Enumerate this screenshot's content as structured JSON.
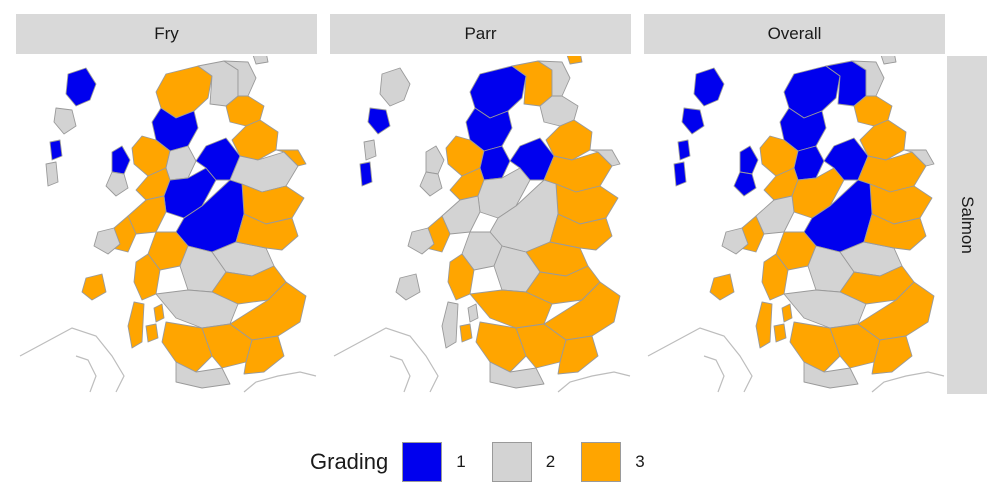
{
  "panels": {
    "fry": "Fry",
    "parr": "Parr",
    "overall": "Overall"
  },
  "row_label": "Salmon",
  "legend": {
    "title": "Grading",
    "items": [
      {
        "label": "1",
        "color": "#0000ee"
      },
      {
        "label": "2",
        "color": "#d3d3d3"
      },
      {
        "label": "3",
        "color": "#ffa500"
      }
    ]
  },
  "colors": {
    "boundary": "#9a9a9a",
    "outline": "#bdbdbd",
    "strip": "#d9d9d9"
  }
}
